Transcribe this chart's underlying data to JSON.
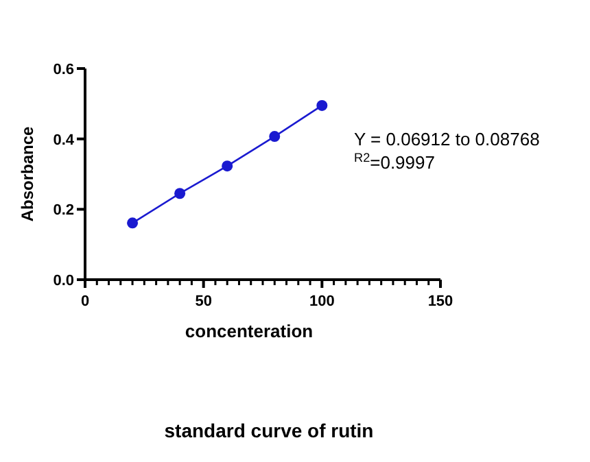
{
  "chart_data": {
    "type": "line",
    "title": "standard curve of rutin",
    "xlabel": "concenteration",
    "ylabel": "Absorbance",
    "x": [
      20,
      40,
      60,
      80,
      100
    ],
    "series": [
      {
        "color": "#1a1ad0",
        "values": [
          0.161,
          0.245,
          0.323,
          0.407,
          0.495
        ]
      }
    ],
    "marker": "circle",
    "line_style": "solid",
    "xlim": [
      0,
      150
    ],
    "ylim": [
      0,
      0.6
    ],
    "xticks": [
      0,
      {
        "value": 5,
        "label": null
      },
      {
        "value": 10,
        "label": null
      },
      {
        "value": 15,
        "label": null
      },
      {
        "value": 20,
        "label": null
      },
      {
        "value": 25,
        "label": null
      },
      {
        "value": 30,
        "label": null
      },
      {
        "value": 35,
        "label": null
      },
      {
        "value": 40,
        "label": null
      },
      {
        "value": 45,
        "label": null
      },
      50,
      {
        "value": 55,
        "label": null
      },
      {
        "value": 60,
        "label": null
      },
      {
        "value": 65,
        "label": null
      },
      {
        "value": 70,
        "label": null
      },
      {
        "value": 75,
        "label": null
      },
      {
        "value": 80,
        "label": null
      },
      {
        "value": 85,
        "label": null
      },
      {
        "value": 90,
        "label": null
      },
      {
        "value": 95,
        "label": null
      },
      100,
      {
        "value": 105,
        "label": null
      },
      {
        "value": 110,
        "label": null
      },
      {
        "value": 115,
        "label": null
      },
      {
        "value": 120,
        "label": null
      },
      {
        "value": 125,
        "label": null
      },
      {
        "value": 130,
        "label": null
      },
      {
        "value": 135,
        "label": null
      },
      {
        "value": 140,
        "label": null
      },
      {
        "value": 145,
        "label": null
      },
      150
    ],
    "yticks": [
      {
        "value": 0,
        "label": "0.0"
      },
      {
        "value": 0.2,
        "label": "0.2"
      },
      {
        "value": 0.4,
        "label": "0.4"
      },
      {
        "value": 0.6,
        "label": "0.6"
      }
    ],
    "annotations": [
      "Y = 0.06912 to 0.08768",
      "$^{R2}$=0.9997"
    ]
  }
}
